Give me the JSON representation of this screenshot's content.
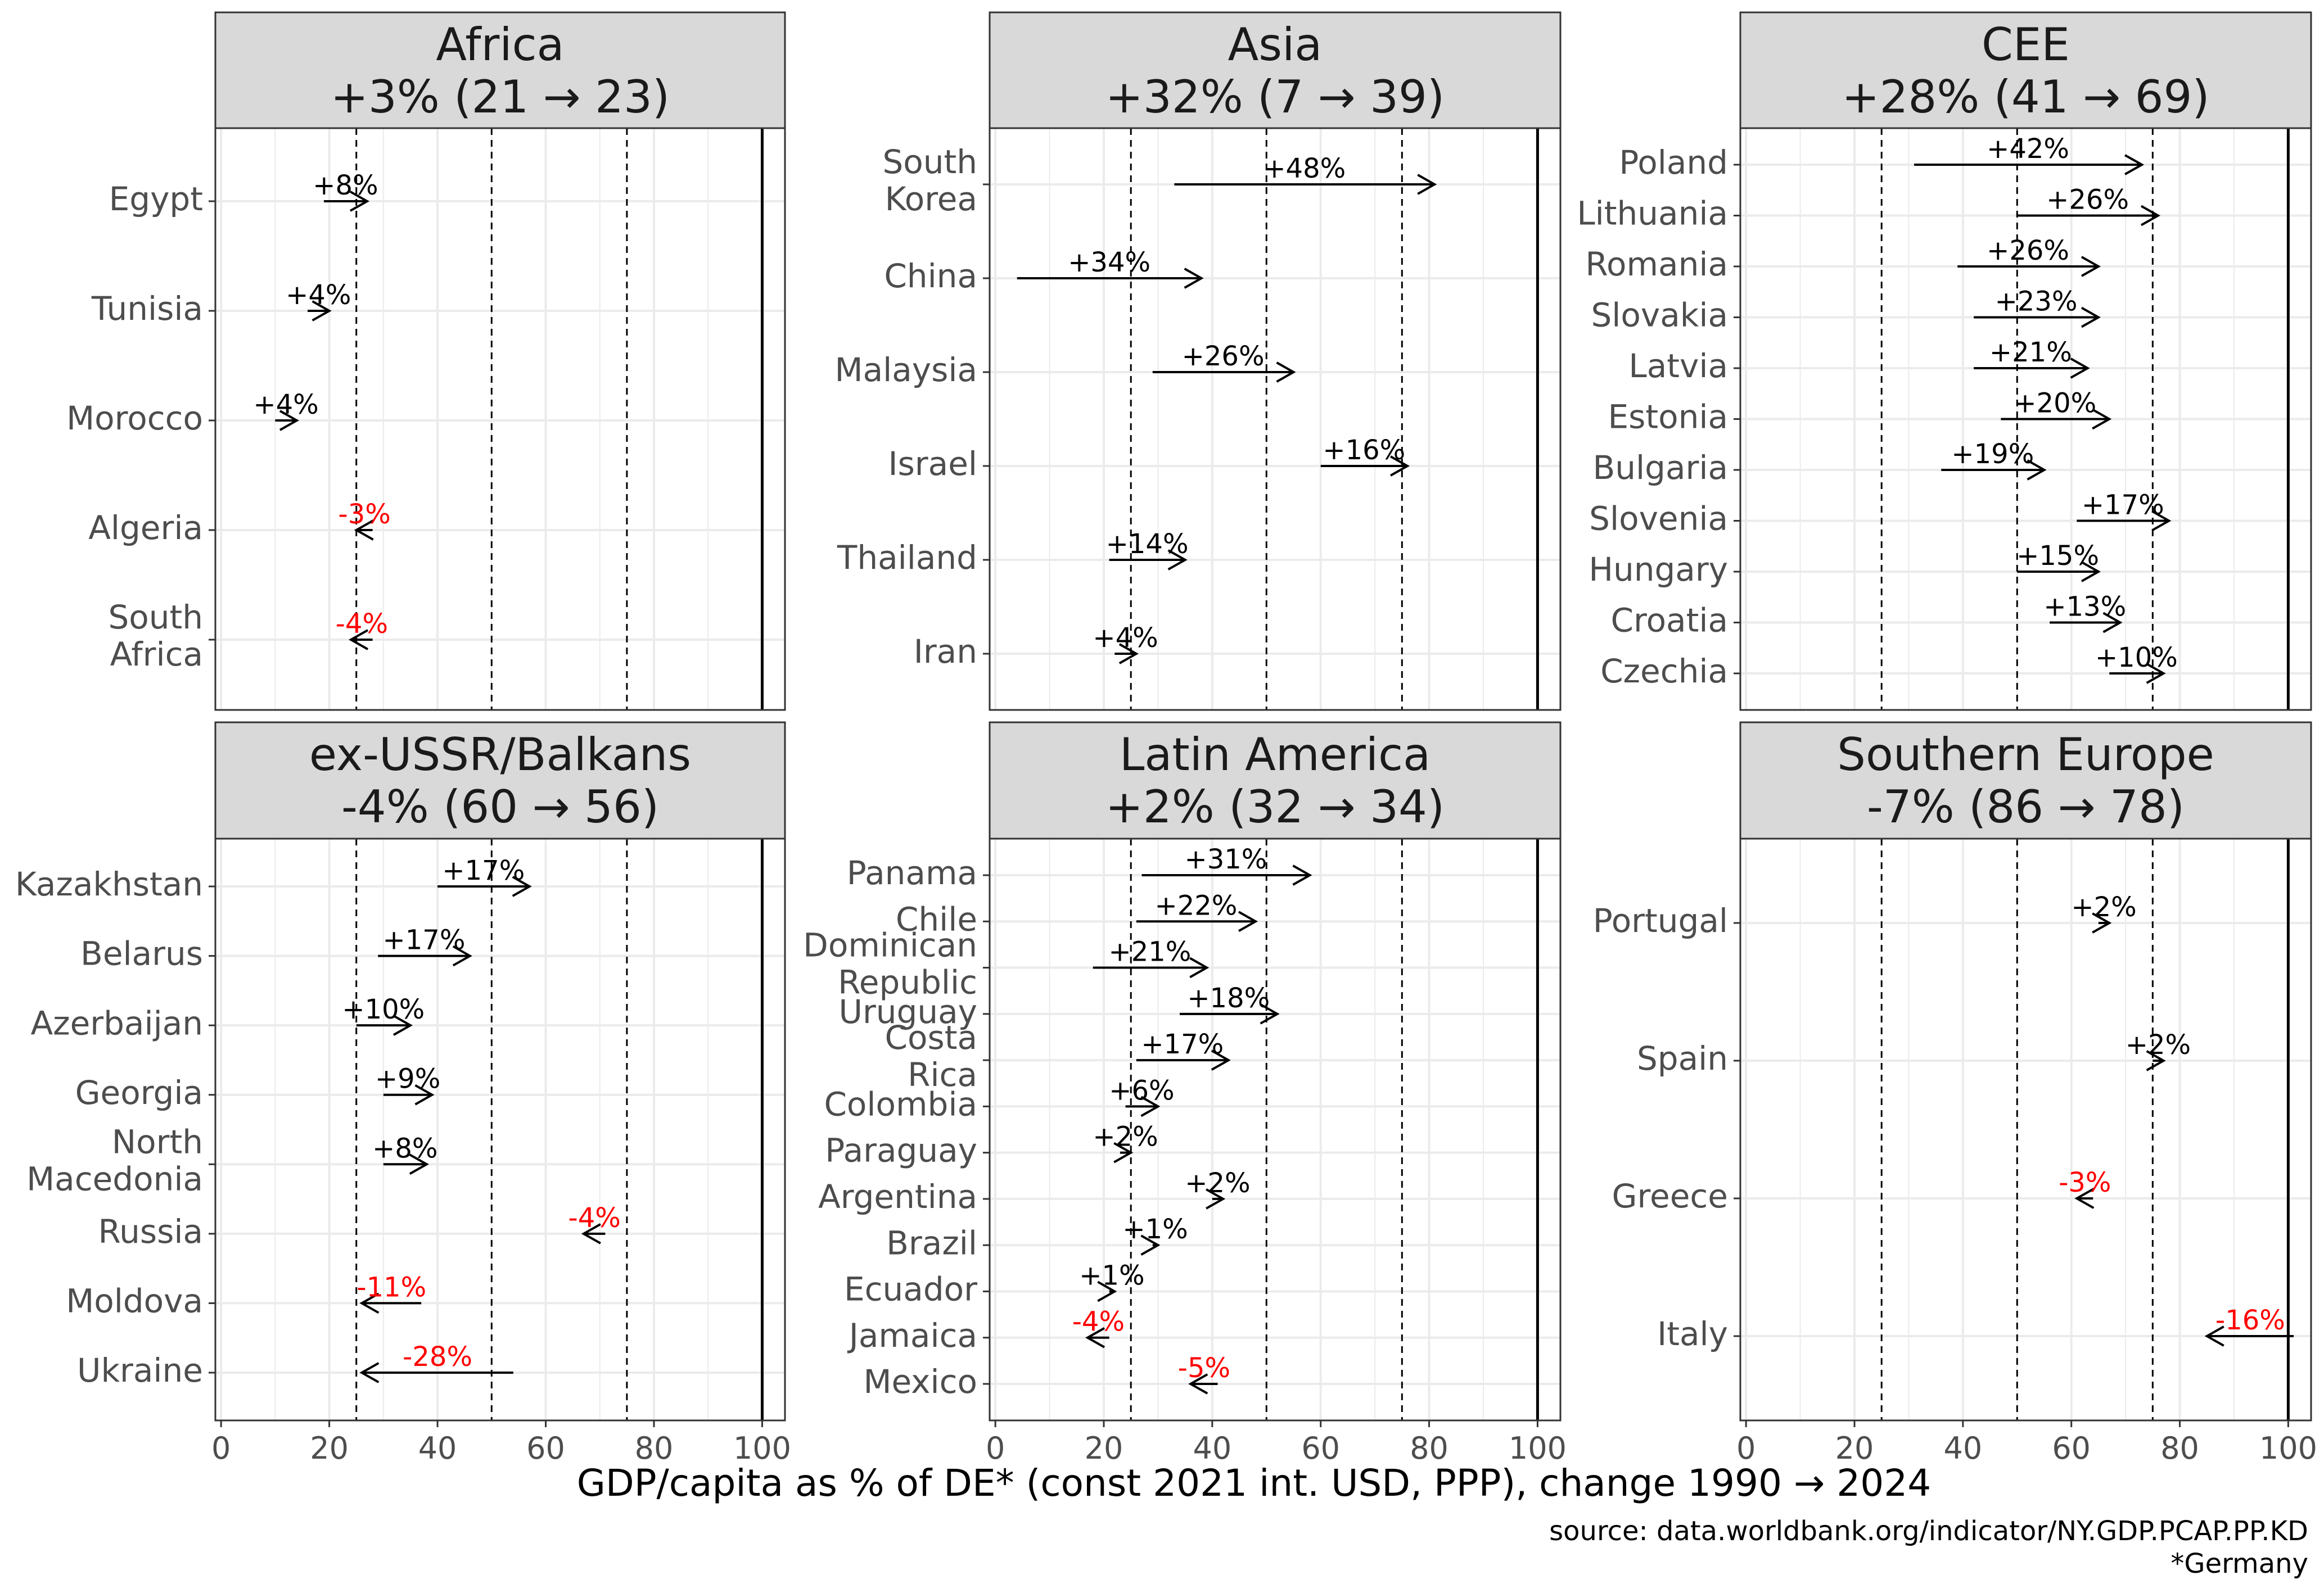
{
  "x_axis_label": "GDP/capita as % of DE* (const 2021 int. USD, PPP), change 1990 → 2024",
  "source": "source: data.worldbank.org/indicator/NY.GDP.PCAP.PP.KD",
  "footnote": "*Germany",
  "colors": {
    "positive": "#000000",
    "negative": "#ff0000",
    "strip": "#d9d9d9",
    "grid": "#ebebeb"
  },
  "chart_data": [
    {
      "type": "arrow",
      "title": "Africa",
      "subtitle": "+3% (21 → 23)",
      "xlim": [
        0,
        100
      ],
      "xticks": [
        0,
        20,
        40,
        60,
        80,
        100
      ],
      "reference_lines": [
        25,
        50,
        75,
        100
      ],
      "rows": [
        {
          "name": "Egypt",
          "label": "+8%",
          "from": 19,
          "to": 27
        },
        {
          "name": "Tunisia",
          "label": "+4%",
          "from": 16,
          "to": 20
        },
        {
          "name": "Morocco",
          "label": "+4%",
          "from": 10,
          "to": 14
        },
        {
          "name": "Algeria",
          "label": "-3%",
          "from": 28,
          "to": 25
        },
        {
          "name": "South Africa",
          "label": "-4%",
          "from": 28,
          "to": 24
        }
      ]
    },
    {
      "type": "arrow",
      "title": "Asia",
      "subtitle": "+32% (7 → 39)",
      "xlim": [
        0,
        100
      ],
      "xticks": [
        0,
        20,
        40,
        60,
        80,
        100
      ],
      "reference_lines": [
        25,
        50,
        75,
        100
      ],
      "rows": [
        {
          "name": "South Korea",
          "label": "+48%",
          "from": 33,
          "to": 81
        },
        {
          "name": "China",
          "label": "+34%",
          "from": 4,
          "to": 38
        },
        {
          "name": "Malaysia",
          "label": "+26%",
          "from": 29,
          "to": 55
        },
        {
          "name": "Israel",
          "label": "+16%",
          "from": 60,
          "to": 76
        },
        {
          "name": "Thailand",
          "label": "+14%",
          "from": 21,
          "to": 35
        },
        {
          "name": "Iran",
          "label": "+4%",
          "from": 22,
          "to": 26
        }
      ]
    },
    {
      "type": "arrow",
      "title": "CEE",
      "subtitle": "+28% (41 → 69)",
      "xlim": [
        0,
        100
      ],
      "xticks": [
        0,
        20,
        40,
        60,
        80,
        100
      ],
      "reference_lines": [
        25,
        50,
        75,
        100
      ],
      "rows": [
        {
          "name": "Poland",
          "label": "+42%",
          "from": 31,
          "to": 73
        },
        {
          "name": "Lithuania",
          "label": "+26%",
          "from": 50,
          "to": 76
        },
        {
          "name": "Romania",
          "label": "+26%",
          "from": 39,
          "to": 65
        },
        {
          "name": "Slovakia",
          "label": "+23%",
          "from": 42,
          "to": 65
        },
        {
          "name": "Latvia",
          "label": "+21%",
          "from": 42,
          "to": 63
        },
        {
          "name": "Estonia",
          "label": "+20%",
          "from": 47,
          "to": 67
        },
        {
          "name": "Bulgaria",
          "label": "+19%",
          "from": 36,
          "to": 55
        },
        {
          "name": "Slovenia",
          "label": "+17%",
          "from": 61,
          "to": 78
        },
        {
          "name": "Hungary",
          "label": "+15%",
          "from": 50,
          "to": 65
        },
        {
          "name": "Croatia",
          "label": "+13%",
          "from": 56,
          "to": 69
        },
        {
          "name": "Czechia",
          "label": "+10%",
          "from": 67,
          "to": 77
        }
      ]
    },
    {
      "type": "arrow",
      "title": "ex-USSR/Balkans",
      "subtitle": "-4% (60 → 56)",
      "xlim": [
        0,
        100
      ],
      "xticks": [
        0,
        20,
        40,
        60,
        80,
        100
      ],
      "reference_lines": [
        25,
        50,
        75,
        100
      ],
      "rows": [
        {
          "name": "Kazakhstan",
          "label": "+17%",
          "from": 40,
          "to": 57
        },
        {
          "name": "Belarus",
          "label": "+17%",
          "from": 29,
          "to": 46
        },
        {
          "name": "Azerbaijan",
          "label": "+10%",
          "from": 25,
          "to": 35
        },
        {
          "name": "Georgia",
          "label": "+9%",
          "from": 30,
          "to": 39
        },
        {
          "name": "North Macedonia",
          "label": "+8%",
          "from": 30,
          "to": 38
        },
        {
          "name": "Russia",
          "label": "-4%",
          "from": 71,
          "to": 67
        },
        {
          "name": "Moldova",
          "label": "-11%",
          "from": 37,
          "to": 26
        },
        {
          "name": "Ukraine",
          "label": "-28%",
          "from": 54,
          "to": 26
        }
      ]
    },
    {
      "type": "arrow",
      "title": "Latin America",
      "subtitle": "+2% (32 → 34)",
      "xlim": [
        0,
        100
      ],
      "xticks": [
        0,
        20,
        40,
        60,
        80,
        100
      ],
      "reference_lines": [
        25,
        50,
        75,
        100
      ],
      "rows": [
        {
          "name": "Panama",
          "label": "+31%",
          "from": 27,
          "to": 58
        },
        {
          "name": "Chile",
          "label": "+22%",
          "from": 26,
          "to": 48
        },
        {
          "name": "Dominican Republic",
          "label": "+21%",
          "from": 18,
          "to": 39
        },
        {
          "name": "Uruguay",
          "label": "+18%",
          "from": 34,
          "to": 52
        },
        {
          "name": "Costa Rica",
          "label": "+17%",
          "from": 26,
          "to": 43
        },
        {
          "name": "Colombia",
          "label": "+6%",
          "from": 24,
          "to": 30
        },
        {
          "name": "Paraguay",
          "label": "+2%",
          "from": 23,
          "to": 25
        },
        {
          "name": "Argentina",
          "label": "+2%",
          "from": 40,
          "to": 42
        },
        {
          "name": "Brazil",
          "label": "+1%",
          "from": 29,
          "to": 30
        },
        {
          "name": "Ecuador",
          "label": "+1%",
          "from": 21,
          "to": 22
        },
        {
          "name": "Jamaica",
          "label": "-4%",
          "from": 21,
          "to": 17
        },
        {
          "name": "Mexico",
          "label": "-5%",
          "from": 41,
          "to": 36
        }
      ]
    },
    {
      "type": "arrow",
      "title": "Southern Europe",
      "subtitle": "-7% (86 → 78)",
      "xlim": [
        0,
        100
      ],
      "xticks": [
        0,
        20,
        40,
        60,
        80,
        100
      ],
      "reference_lines": [
        25,
        50,
        75,
        100
      ],
      "rows": [
        {
          "name": "Portugal",
          "label": "+2%",
          "from": 65,
          "to": 67
        },
        {
          "name": "Spain",
          "label": "+2%",
          "from": 75,
          "to": 77
        },
        {
          "name": "Greece",
          "label": "-3%",
          "from": 64,
          "to": 61
        },
        {
          "name": "Italy",
          "label": "-16%",
          "from": 101,
          "to": 85
        }
      ]
    }
  ]
}
